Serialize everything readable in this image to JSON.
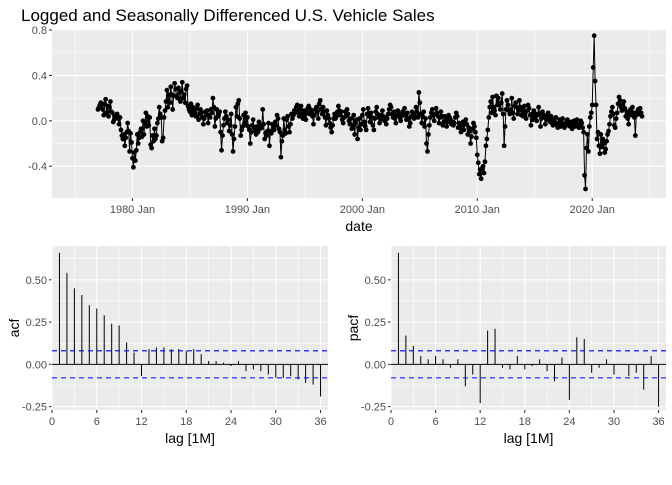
{
  "chart_data": [
    {
      "type": "line",
      "title": "Logged and Seasonally Differenced U.S. Vehicle Sales",
      "xlabel": "date",
      "ylabel": "",
      "x_ticks": [
        "1980 Jan",
        "1990 Jan",
        "2000 Jan",
        "2010 Jan",
        "2020 Jan"
      ],
      "y_ticks": [
        "-0.4",
        "0.0",
        "0.4",
        "0.8"
      ],
      "xlim": [
        "1973-01",
        "2026-06"
      ],
      "ylim": [
        -0.68,
        0.8
      ],
      "markers": true,
      "grid": true,
      "start": "1977-01",
      "frequency": "monthly",
      "values": [
        0.1,
        0.12,
        0.14,
        0.16,
        0.14,
        0.1,
        0.05,
        0.15,
        0.19,
        0.07,
        0.13,
        0.04,
        0.12,
        0.17,
        0.08,
        0.07,
        -0.01,
        0.01,
        0.04,
        0.03,
        0.06,
        0.02,
        -0.03,
        0.03,
        -0.08,
        -0.13,
        -0.16,
        -0.12,
        -0.22,
        -0.15,
        -0.1,
        -0.02,
        -0.09,
        -0.27,
        -0.11,
        -0.19,
        -0.33,
        -0.41,
        -0.28,
        -0.35,
        -0.26,
        -0.12,
        -0.2,
        -0.15,
        -0.1,
        -0.07,
        -0.14,
        0,
        -0.12,
        -0.02,
        0.07,
        -0.05,
        0.04,
        -0.04,
        0.03,
        -0.21,
        -0.24,
        -0.13,
        -0.18,
        -0.07,
        -0.16,
        -0.13,
        -0.02,
        0.02,
        0.12,
        0.06,
        0.03,
        -0.18,
        -0.15,
        0.03,
        0.09,
        0.17,
        0.27,
        0.12,
        0.23,
        0.16,
        0.3,
        0.23,
        0.1,
        0.22,
        0.33,
        0.28,
        0.22,
        0.2,
        0.29,
        0.25,
        0.17,
        0.26,
        0.34,
        0.2,
        0.23,
        0.16,
        0.28,
        0.31,
        0.13,
        0.1,
        0.08,
        0.15,
        0.05,
        0.12,
        0.09,
        0.07,
        0.04,
        0.11,
        0.14,
        0.01,
        0.06,
        0.1,
        0.07,
        0.03,
        -0.03,
        0.02,
        0.08,
        0.05,
        0.09,
        -0.02,
        0.05,
        0.03,
        0.1,
        0.07,
        0.2,
        0.12,
        -0.05,
        0.02,
        0.1,
        0.04,
        0.05,
        0.08,
        -0.1,
        -0.26,
        -0.13,
        -0.04,
        0.02,
        0.08,
        0.04,
        -0.02,
        0.01,
        -0.09,
        -0.04,
        0.06,
        -0.12,
        -0.27,
        -0.16,
        -0.05,
        0.12,
        0.04,
        0.15,
        0.18,
        0.02,
        -0.13,
        -0.08,
        -0.05,
        0.05,
        -0.02,
        0.07,
        -0.04,
        0.03,
        -0.05,
        -0.08,
        -0.2,
        -0.1,
        -0.04,
        0.01,
        -0.06,
        -0.09,
        -0.12,
        -0.05,
        -0.1,
        -0.01,
        -0.07,
        -0.04,
        -0.06,
        0.1,
        -0.03,
        -0.16,
        -0.11,
        -0.13,
        -0.09,
        -0.02,
        -0.22,
        -0.09,
        -0.11,
        -0.03,
        -0.06,
        -0.08,
        -0.01,
        -0.04,
        0.05,
        0.02,
        -0.07,
        -0.1,
        -0.32,
        -0.18,
        -0.13,
        0.02,
        -0.08,
        -0.11,
        0.01,
        0.04,
        -0.05,
        -0.1,
        -0.03,
        0.06,
        0.02,
        0.05,
        0.09,
        0.07,
        0.12,
        0.14,
        0.08,
        0.04,
        0.1,
        0.13,
        0.06,
        0.02,
        0.09,
        0.05,
        0.01,
        0.07,
        0.11,
        0.13,
        0.06,
        0.1,
        0.08,
        0.04,
        -0.03,
        0.05,
        0.1,
        0.12,
        0.08,
        0.02,
        0.15,
        0.18,
        0.1,
        0.06,
        0.12,
        0.08,
        0.03,
        -0.04,
        0.09,
        0.05,
        0.02,
        -0.02,
        -0.06,
        -0.1,
        -0.04,
        0.02,
        0.06,
        0.02,
        0.04,
        0.08,
        0.13,
        0.09,
        0.05,
        0.08,
        0.01,
        -0.02,
        0.03,
        0.08,
        0.04,
        0.1,
        0.06,
        0,
        -0.03,
        0.02,
        -0.07,
        -0.04,
        0.05,
        -0.12,
        -0.02,
        0.01,
        -0.16,
        -0.06,
        0.02,
        -0.08,
        -0.03,
        0.05,
        0.1,
        -0.01,
        -0.05,
        -0.08,
        0.06,
        0.11,
        0.04,
        -0.01,
        0.07,
        0.03,
        -0.04,
        -0.08,
        0.02,
        0.08,
        0.12,
        0.06,
        0.03,
        -0.02,
        0.01,
        0.05,
        0.09,
        0.04,
        0,
        0.03,
        -0.03,
        0.02,
        0.06,
        0.1,
        0.14,
        0.12,
        0.06,
        0.03,
        0.08,
        0.02,
        -0.02,
        0.05,
        0.09,
        0.06,
        0.03,
        0,
        0.04,
        0.08,
        0.05,
        0.11,
        0.05,
        0.01,
        0.07,
        0.02,
        -0.05,
        -0.02,
        0.04,
        0.08,
        0.06,
        0.02,
        0.04,
        0.12,
        0.08,
        0.03,
        0.25,
        0.16,
        0.06,
        -0.02,
        0.04,
        0.08,
        -0.05,
        0.02,
        -0.2,
        -0.27,
        -0.12,
        -0.04,
        0.03,
        0.07,
        0.1,
        0.05,
        0,
        0.06,
        0.11,
        0.07,
        0.04,
        -0.02,
        0.03,
        0.08,
        0.04,
        -0.04,
        -0.01,
        0.04,
        0.02,
        -0.05,
        -0.01,
        0.05,
        0.03,
        0.01,
        -0.03,
        -0.01,
        -0.04,
        -0.02,
        0.03,
        0.07,
        0.04,
        -0.06,
        -0.02,
        -0.06,
        -0.1,
        -0.04,
        -0.01,
        -0.08,
        -0.03,
        0.01,
        -0.03,
        -0.12,
        -0.06,
        -0.09,
        -0.2,
        -0.14,
        -0.07,
        -0.02,
        -0.05,
        -0.1,
        -0.15,
        -0.3,
        -0.37,
        -0.47,
        -0.43,
        -0.51,
        -0.42,
        -0.4,
        -0.46,
        -0.36,
        -0.22,
        -0.16,
        -0.08,
        0.03,
        0.12,
        0.17,
        0.07,
        0.21,
        0.12,
        0.09,
        0.05,
        0.22,
        0.14,
        0.2,
        0.14,
        0.1,
        0.16,
        0.24,
        0.06,
        -0.22,
        -0.05,
        0.1,
        0.18,
        0.14,
        0.09,
        0.06,
        0.1,
        0.2,
        0.07,
        0.02,
        0.13,
        0.16,
        0.12,
        0.06,
        0.09,
        0.18,
        0.12,
        0.05,
        0.1,
        0.04,
        0.13,
        0.07,
        0.02,
        0.09,
        0.14,
        0.11,
        0.05,
        -0.04,
        0.06,
        0.01,
        0.09,
        0.03,
        0.06,
        0,
        0.05,
        0.12,
        0.06,
        -0.05,
        0.02,
        0.08,
        0.03,
        0.05,
        -0.03,
        0.01,
        0.04,
        0.07,
        0.02,
        -0.01,
        0.04,
        -0.02,
        -0.04,
        0.01,
        -0.02,
        0.03,
        -0.04,
        -0.06,
        -0.02,
        0.01,
        -0.05,
        -0.02,
        0.02,
        -0.04,
        -0.06,
        -0.03,
        -0.01,
        0.01,
        -0.04,
        -0.02,
        -0.05,
        -0.01,
        -0.07,
        -0.03,
        0,
        -0.05,
        -0.02,
        0.01,
        -0.03,
        -0.06,
        -0.04,
        0,
        -0.02,
        -0.06,
        -0.1,
        -0.48,
        -0.6,
        -0.24,
        -0.12,
        -0.27,
        -0.05,
        0.03,
        0.07,
        0.14,
        0.47,
        0.75,
        0.35,
        0.14,
        -0.16,
        -0.1,
        -0.22,
        -0.29,
        -0.12,
        -0.23,
        -0.16,
        -0.2,
        -0.28,
        -0.25,
        -0.18,
        -0.12,
        -0.09,
        -0.03,
        0.04,
        0.08,
        0.12,
        0.06,
        -0.04,
        -0.06,
        0.02,
        0.07,
        0.15,
        0.21,
        0.18,
        0.12,
        0.09,
        0.14,
        0.17,
        0.11,
        0.04,
        0.08,
        0.02,
        -0.03,
        0.06,
        0.1,
        0.05,
        0.12,
        0.07,
        0.03,
        -0.13,
        0.05,
        0.08,
        0.1,
        0.06,
        0.11,
        0.07,
        0.04
      ]
    },
    {
      "type": "bar",
      "subtype": "acf",
      "xlabel": "lag [1M]",
      "ylabel": "acf",
      "x_ticks": [
        "0",
        "6",
        "12",
        "18",
        "24",
        "30",
        "36"
      ],
      "y_ticks": [
        "-0.25",
        "0.00",
        "0.25",
        "0.50"
      ],
      "xlim": [
        0,
        37
      ],
      "ylim": [
        -0.27,
        0.7
      ],
      "confidence_bound": 0.08,
      "bound_color": "#0000ff",
      "lags": [
        1,
        2,
        3,
        4,
        5,
        6,
        7,
        8,
        9,
        10,
        11,
        12,
        13,
        14,
        15,
        16,
        17,
        18,
        19,
        20,
        21,
        22,
        23,
        24,
        25,
        26,
        27,
        28,
        29,
        30,
        31,
        32,
        33,
        34,
        35,
        36
      ],
      "values": [
        0.66,
        0.54,
        0.45,
        0.41,
        0.35,
        0.33,
        0.29,
        0.24,
        0.23,
        0.13,
        0.07,
        -0.07,
        0.09,
        0.1,
        0.1,
        0.09,
        0.09,
        0.08,
        0.09,
        0.06,
        0.02,
        0.02,
        0.01,
        -0.01,
        0.02,
        -0.04,
        -0.03,
        -0.04,
        -0.06,
        -0.08,
        -0.08,
        -0.07,
        -0.09,
        -0.11,
        -0.12,
        -0.19
      ]
    },
    {
      "type": "bar",
      "subtype": "pacf",
      "xlabel": "lag [1M]",
      "ylabel": "pacf",
      "x_ticks": [
        "0",
        "6",
        "12",
        "18",
        "24",
        "30",
        "36"
      ],
      "y_ticks": [
        "-0.25",
        "0.00",
        "0.25",
        "0.50"
      ],
      "xlim": [
        0,
        37
      ],
      "ylim": [
        -0.27,
        0.7
      ],
      "confidence_bound": 0.08,
      "bound_color": "#0000ff",
      "lags": [
        1,
        2,
        3,
        4,
        5,
        6,
        7,
        8,
        9,
        10,
        11,
        12,
        13,
        14,
        15,
        16,
        17,
        18,
        19,
        20,
        21,
        22,
        23,
        24,
        25,
        26,
        27,
        28,
        29,
        30,
        31,
        32,
        33,
        34,
        35,
        36
      ],
      "values": [
        0.66,
        0.17,
        0.11,
        0.05,
        0.03,
        0.05,
        0.03,
        -0.02,
        0.03,
        -0.13,
        -0.06,
        -0.23,
        0.2,
        0.21,
        -0.02,
        -0.03,
        0.05,
        -0.03,
        -0.01,
        0.03,
        -0.04,
        -0.1,
        0.04,
        -0.21,
        0.16,
        0.15,
        -0.05,
        -0.02,
        0.03,
        -0.06,
        0,
        -0.07,
        -0.05,
        -0.15,
        0.05,
        -0.25
      ]
    }
  ]
}
